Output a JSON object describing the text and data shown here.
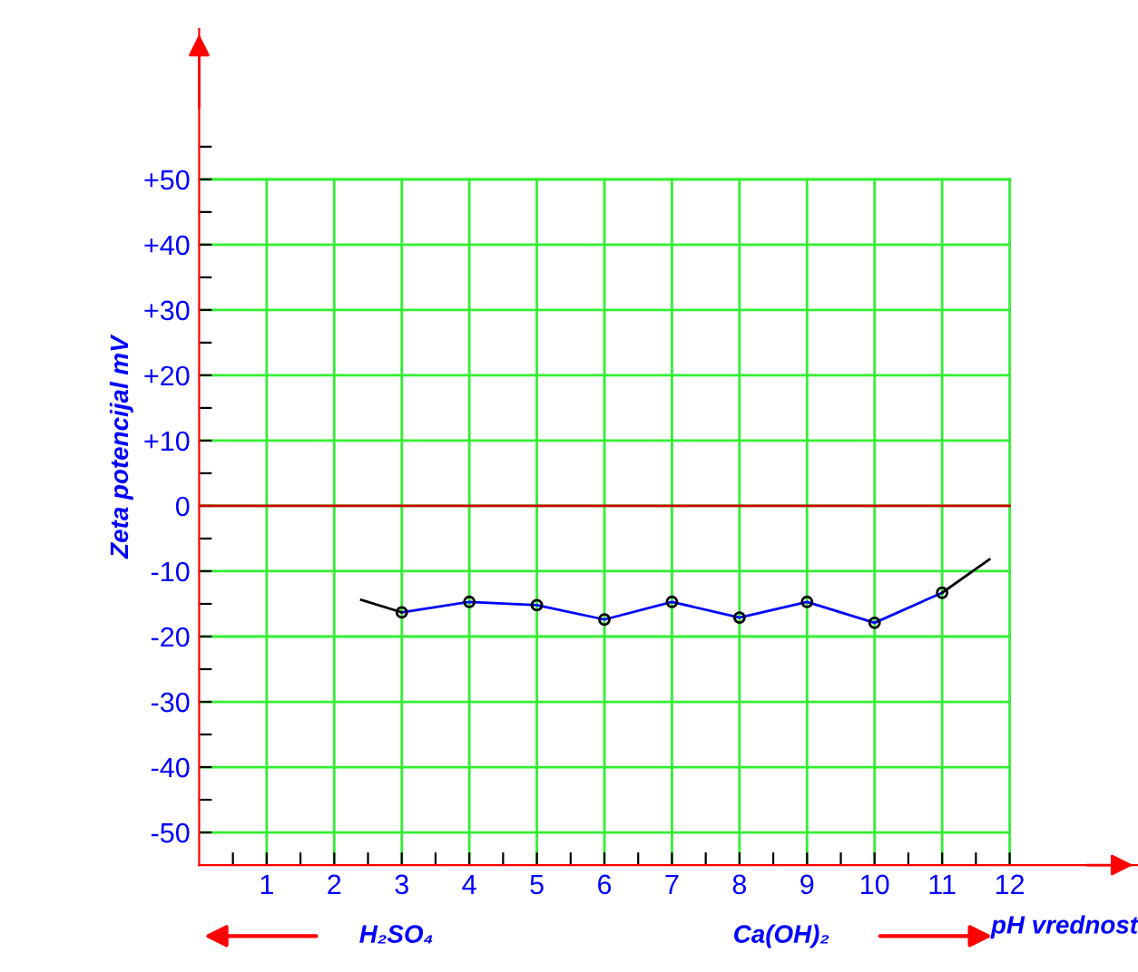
{
  "chart_data": {
    "type": "line",
    "xlabel": "pH vrednost",
    "ylabel": "Zeta potencijal mV",
    "xlim": [
      0,
      13.9
    ],
    "ylim": [
      -55,
      73
    ],
    "xticks": [
      {
        "value": 0.5,
        "label": null
      },
      1,
      {
        "value": 1.5,
        "label": null
      },
      2,
      {
        "value": 2.5,
        "label": null
      },
      3,
      {
        "value": 3.5,
        "label": null
      },
      4,
      {
        "value": 4.5,
        "label": null
      },
      5,
      {
        "value": 5.5,
        "label": null
      },
      6,
      {
        "value": 6.5,
        "label": null
      },
      7,
      {
        "value": 7.5,
        "label": null
      },
      8,
      {
        "value": 8.5,
        "label": null
      },
      9,
      {
        "value": 9.5,
        "label": null
      },
      10,
      {
        "value": 10.5,
        "label": null
      },
      11,
      {
        "value": 11.5,
        "label": null
      },
      12
    ],
    "yticks": [
      -50,
      {
        "value": -45,
        "label": null
      },
      -40,
      {
        "value": -35,
        "label": null
      },
      -30,
      {
        "value": -25,
        "label": null
      },
      -20,
      {
        "value": -15,
        "label": null
      },
      -10,
      {
        "value": -5,
        "label": null
      },
      0,
      {
        "value": 5,
        "label": null
      },
      {
        "value": 10,
        "label": "+10"
      },
      {
        "value": 15,
        "label": null
      },
      {
        "value": 20,
        "label": "+20"
      },
      {
        "value": 25,
        "label": null
      },
      {
        "value": 30,
        "label": "+30"
      },
      {
        "value": 35,
        "label": null
      },
      {
        "value": 40,
        "label": "+40"
      },
      {
        "value": 45,
        "label": null
      },
      {
        "value": 50,
        "label": "+50"
      },
      {
        "value": 55,
        "label": null
      }
    ],
    "grid": true,
    "series": [
      {
        "color": "#0000ff",
        "x": [
          3,
          4,
          5,
          6,
          7,
          8,
          9,
          10,
          11
        ],
        "values": [
          -16.3,
          -14.7,
          -15.2,
          -17.4,
          -14.7,
          -17.1,
          -14.7,
          -17.9,
          -13.3
        ],
        "marker": "circle"
      },
      {
        "color": "#000000",
        "x": [
          2.4,
          3
        ],
        "values": [
          -14.4,
          -16.3
        ]
      },
      {
        "color": "#000000",
        "x": [
          11,
          11.7
        ],
        "values": [
          -13.3,
          -8.2
        ]
      }
    ],
    "ref_lines": [
      {
        "axis": "y",
        "value": 0,
        "label": null,
        "color": "#cc0000"
      }
    ],
    "annotations": [
      "H₂SO₄",
      "Ca(OH)₂"
    ]
  }
}
